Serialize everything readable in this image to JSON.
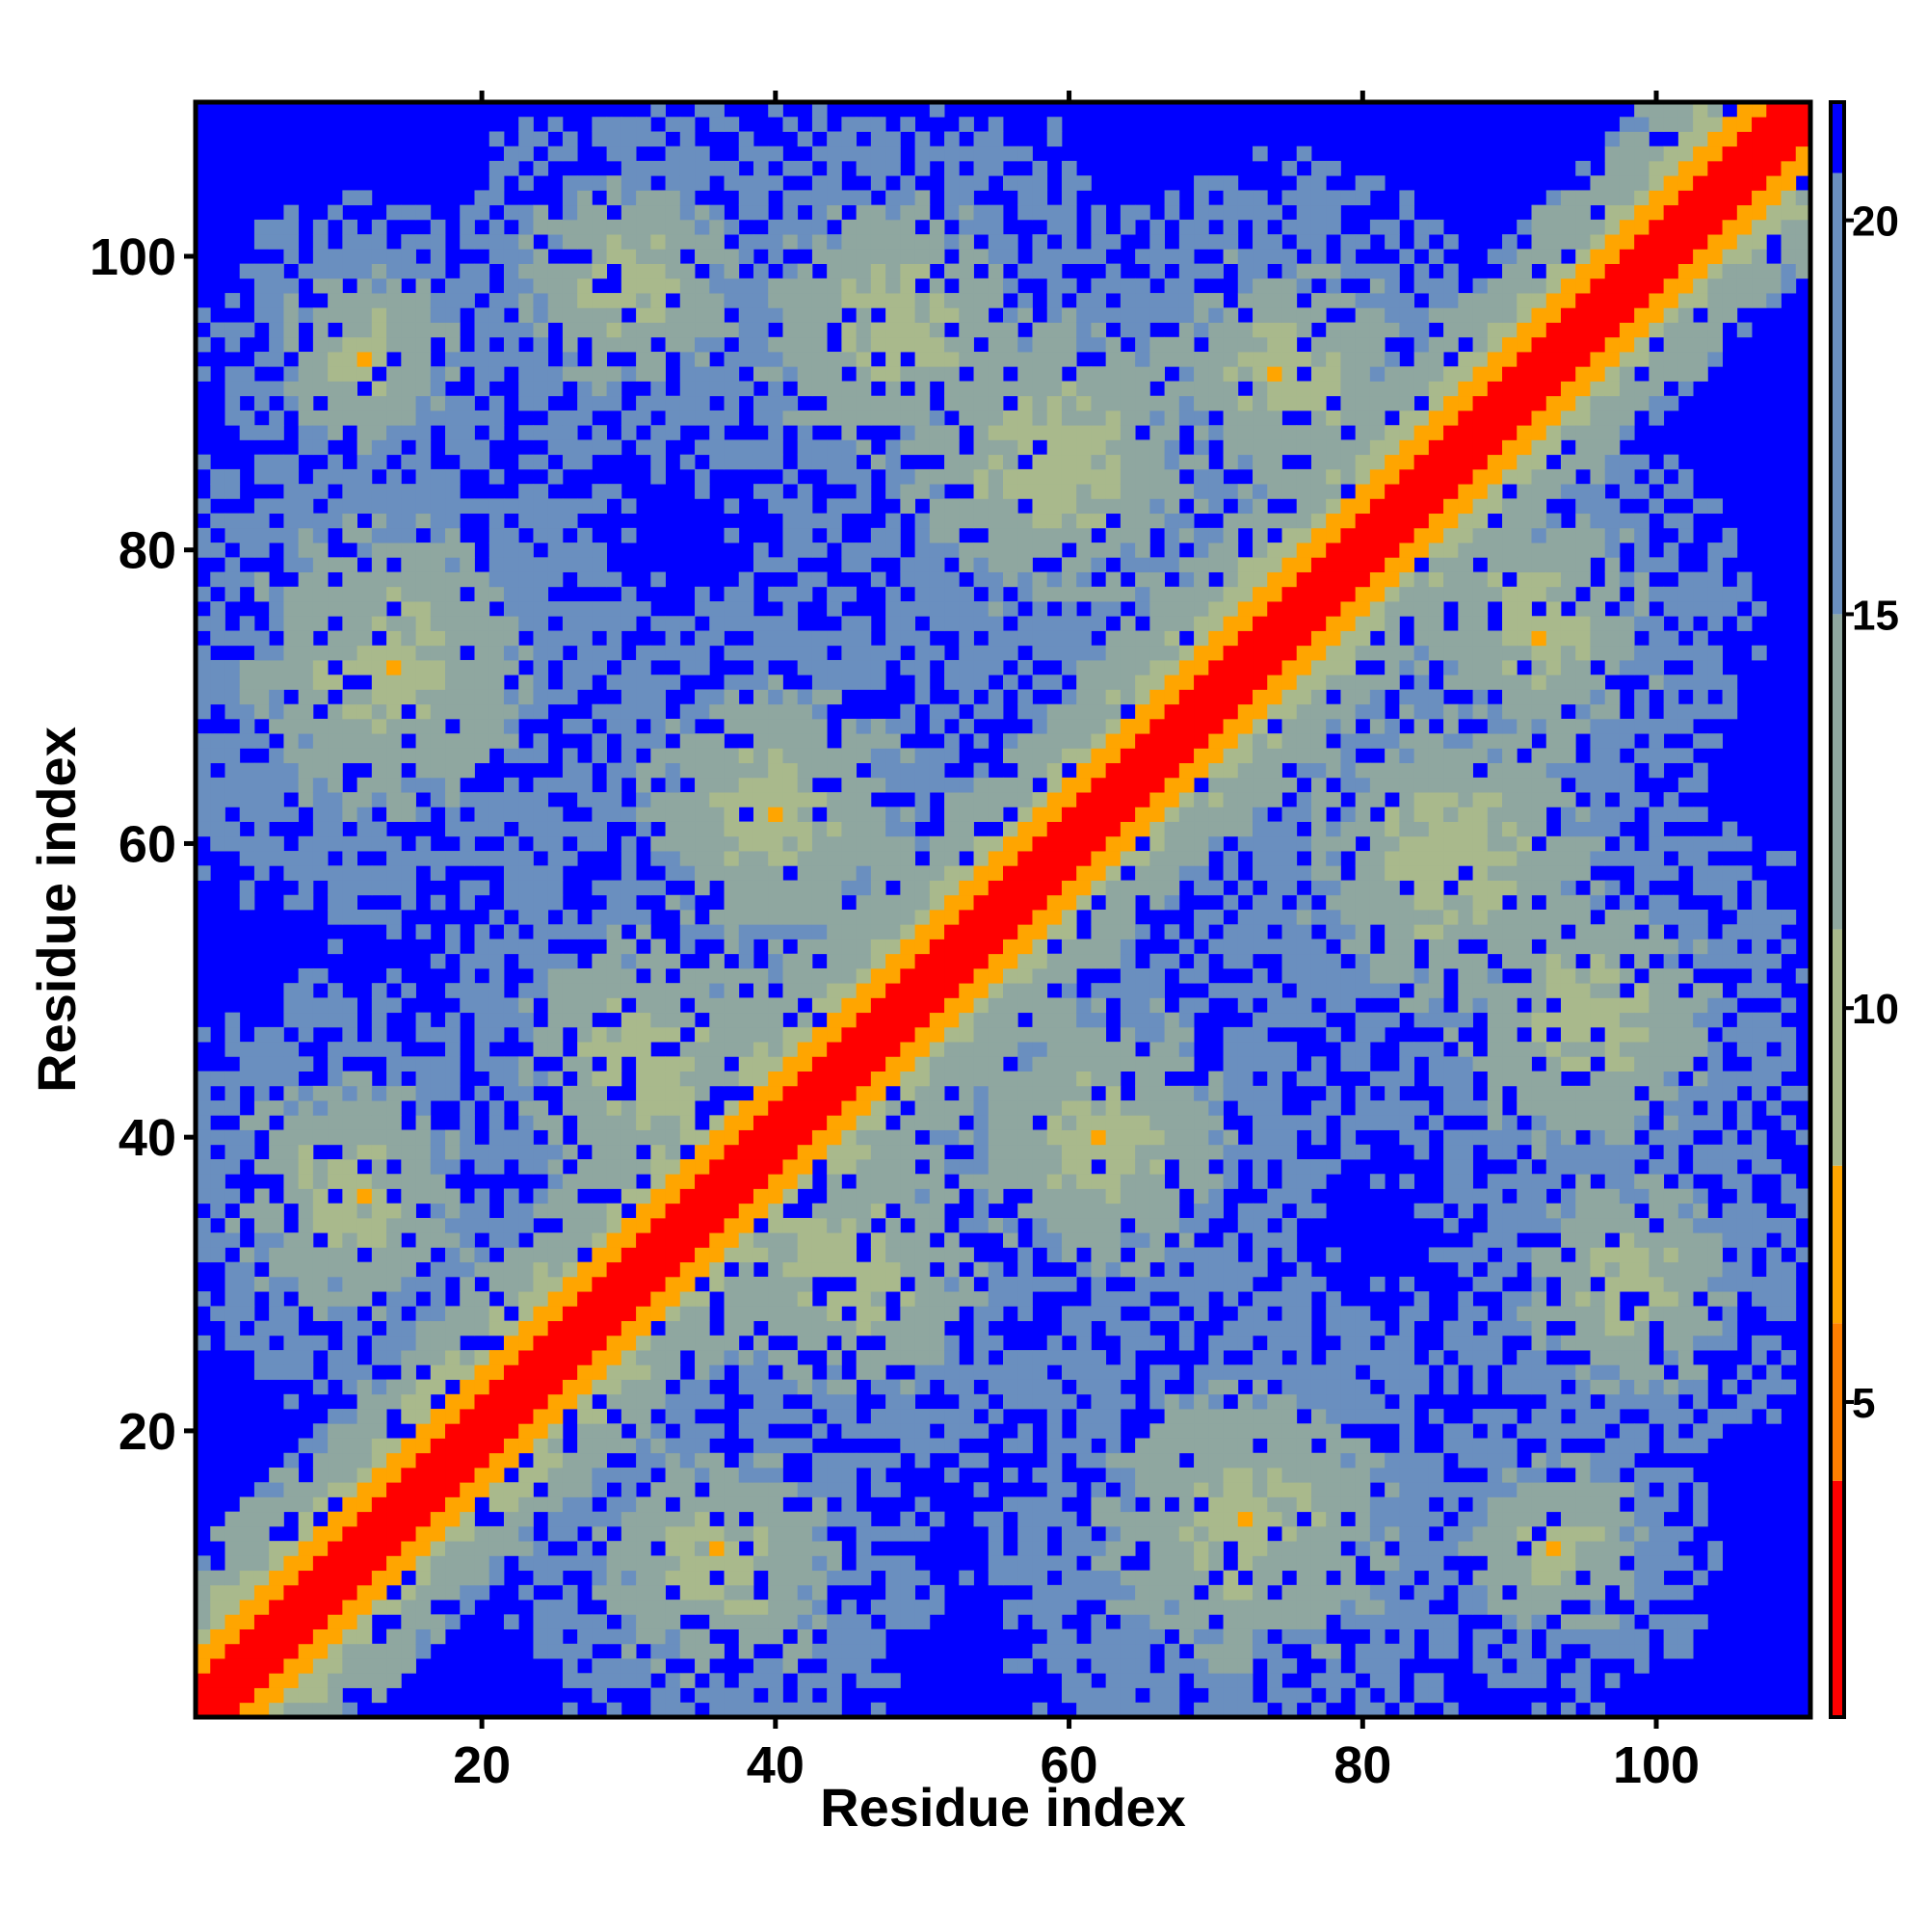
{
  "chart_data": {
    "type": "heatmap",
    "title": "",
    "xlabel": "Residue index",
    "ylabel": "Residue index",
    "n_residues": 110,
    "xlim": [
      1,
      110
    ],
    "ylim": [
      1,
      110
    ],
    "x_ticks": [
      20,
      40,
      60,
      80,
      100
    ],
    "y_ticks": [
      20,
      40,
      60,
      80,
      100
    ],
    "value_range": [
      1,
      21.5
    ],
    "colorbar_ticks": [
      5,
      10,
      15,
      20
    ],
    "colors": {
      "very_close": "#ff0000",
      "close": "#ff7f00",
      "near": "#ffa500",
      "mid_light": "#a9b98c",
      "mid": "#8fa7a0",
      "far": "#6a8fbf",
      "beyond_cutoff": "#0000ff"
    },
    "structure_contacts": [
      {
        "center": [
          45,
          31
        ],
        "spread": 9
      },
      {
        "center": [
          72,
          14
        ],
        "spread": 10
      },
      {
        "center": [
          36,
          11
        ],
        "spread": 8
      },
      {
        "center": [
          62,
          40
        ],
        "spread": 9
      },
      {
        "center": [
          86,
          59
        ],
        "spread": 10
      },
      {
        "center": [
          95,
          48
        ],
        "spread": 9
      },
      {
        "center": [
          92,
          75
        ],
        "spread": 8
      },
      {
        "center": [
          98,
          30
        ],
        "spread": 7
      },
      {
        "center": [
          93,
          12
        ],
        "spread": 6
      }
    ]
  }
}
